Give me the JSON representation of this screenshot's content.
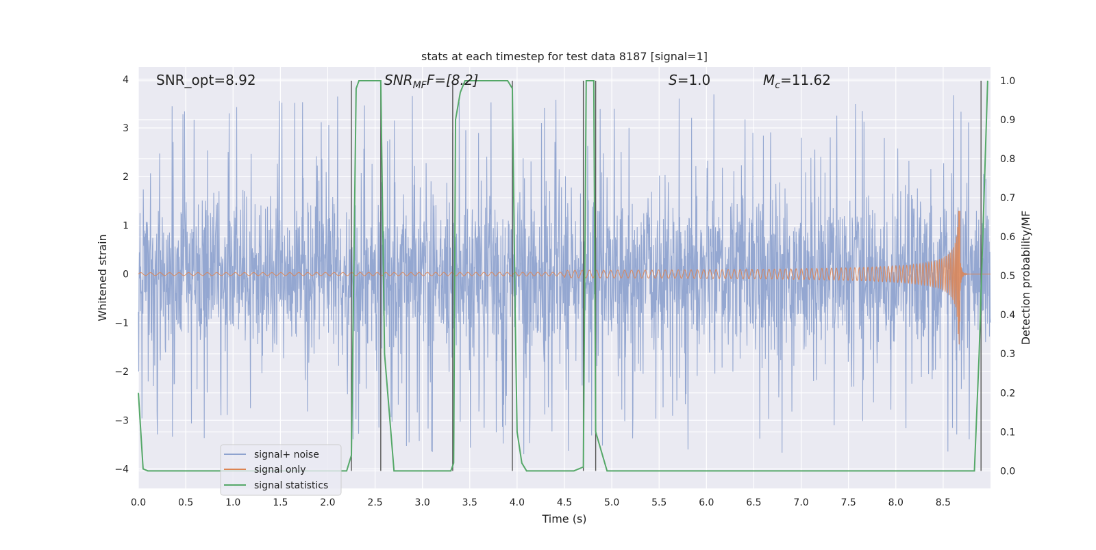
{
  "chart_data": {
    "type": "line",
    "title": "stats at each timestep for test data 8187 [signal=1]",
    "xlabel": "Time (s)",
    "ylabel": "Whitened strain",
    "ylabel_right": "Detection probability/MF",
    "xlim": [
      0.0,
      9.0
    ],
    "ylim": [
      -4.4,
      4.25
    ],
    "ylim_right": [
      -0.045,
      1.035
    ],
    "x_ticks": [
      0.0,
      0.5,
      1.0,
      1.5,
      2.0,
      2.5,
      3.0,
      3.5,
      4.0,
      4.5,
      5.0,
      5.5,
      6.0,
      6.5,
      7.0,
      7.5,
      8.0,
      8.5
    ],
    "x_tick_labels": [
      "0.0",
      "0.5",
      "1.0",
      "1.5",
      "2.0",
      "2.5",
      "3.0",
      "3.5",
      "4.0",
      "4.5",
      "5.0",
      "5.5",
      "6.0",
      "6.5",
      "7.0",
      "7.5",
      "8.0",
      "8.5"
    ],
    "y_ticks": [
      -4,
      -3,
      -2,
      -1,
      0,
      1,
      2,
      3,
      4
    ],
    "y_tick_labels": [
      "−4",
      "−3",
      "−2",
      "−1",
      "0",
      "1",
      "2",
      "3",
      "4"
    ],
    "y_right_ticks": [
      0.0,
      0.1,
      0.2,
      0.3,
      0.4,
      0.5,
      0.6,
      0.7,
      0.8,
      0.9,
      1.0
    ],
    "y_right_tick_labels": [
      "0.0",
      "0.1",
      "0.2",
      "0.3",
      "0.4",
      "0.5",
      "0.6",
      "0.7",
      "0.8",
      "0.9",
      "1.0"
    ],
    "grid": true,
    "legend_position": "bottom-left",
    "annotations": {
      "snr_opt": "SNR_opt=8.92",
      "snr_mf_prefix": "SNR",
      "snr_mf_sub": "MF",
      "snr_mf_rest": "F=[8.2]",
      "s_label": "S",
      "s_rest": "=1.0",
      "mc_label": "M",
      "mc_sub": "c",
      "mc_rest": "=11.62"
    },
    "series": [
      {
        "name": "signal+ noise",
        "color": "#8fa3cf",
        "axis": "left",
        "description": "whitened strain noise with occasional spikes up to about ±3.7",
        "typical_envelope": [
          -1.6,
          1.6
        ],
        "peak_envelope": [
          -3.7,
          3.7
        ]
      },
      {
        "name": "signal only",
        "color": "#dd8452",
        "axis": "left",
        "chirp_start": 4.5,
        "chirp_merger": 8.68,
        "start_amplitude": 0.03,
        "peak_amplitude_positive": 1.3,
        "peak_amplitude_negative": -1.7
      },
      {
        "name": "signal statistics",
        "color": "#55a868",
        "axis": "right",
        "x": [
          0.0,
          0.05,
          0.1,
          2.2,
          2.25,
          2.3,
          2.33,
          2.56,
          2.6,
          2.7,
          3.3,
          3.33,
          3.35,
          3.4,
          3.45,
          3.9,
          3.95,
          3.98,
          4.0,
          4.05,
          4.1,
          4.6,
          4.7,
          4.73,
          4.81,
          4.83,
          4.95,
          8.83,
          8.88,
          8.97
        ],
        "values": [
          0.2,
          0.005,
          0.0,
          0.0,
          0.04,
          0.98,
          1.0,
          1.0,
          0.3,
          0.0,
          0.0,
          0.02,
          0.9,
          0.97,
          1.0,
          1.0,
          0.98,
          0.4,
          0.1,
          0.02,
          0.0,
          0.0,
          0.01,
          1.0,
          1.0,
          0.1,
          0.0,
          0.0,
          0.3,
          1.0
        ]
      }
    ],
    "vertical_lines": [
      2.25,
      2.56,
      3.32,
      3.95,
      4.7,
      4.83,
      8.9
    ]
  },
  "legend": {
    "items": [
      {
        "label": "signal+ noise",
        "color": "#8fa3cf"
      },
      {
        "label": "signal only",
        "color": "#dd8452"
      },
      {
        "label": "signal statistics",
        "color": "#55a868"
      }
    ]
  }
}
